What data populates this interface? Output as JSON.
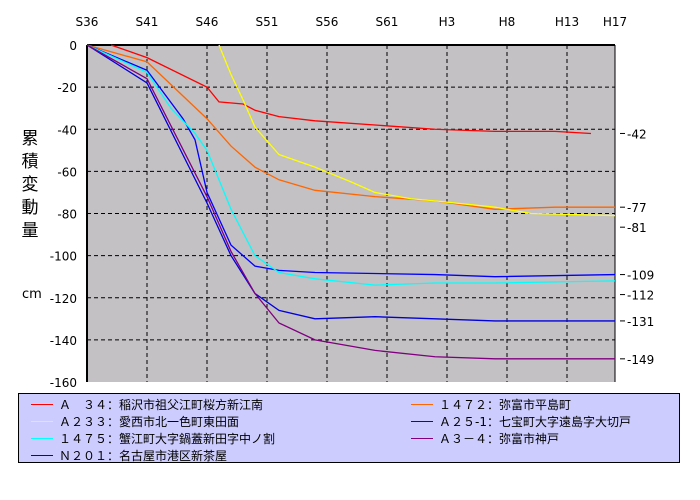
{
  "chart_data": {
    "type": "line",
    "title": "",
    "ylabel": "累積変動量",
    "yunit": "cm",
    "xlabel": "",
    "xlim": [
      1961,
      2005
    ],
    "ylim": [
      -160,
      0
    ],
    "x_ticks": [
      {
        "label": "S36",
        "year": 1961
      },
      {
        "label": "S41",
        "year": 1966
      },
      {
        "label": "S46",
        "year": 1971
      },
      {
        "label": "S51",
        "year": 1976
      },
      {
        "label": "S56",
        "year": 1981
      },
      {
        "label": "S61",
        "year": 1986
      },
      {
        "label": "H3",
        "year": 1991
      },
      {
        "label": "H8",
        "year": 1996
      },
      {
        "label": "H13",
        "year": 2001
      },
      {
        "label": "H17",
        "year": 2005
      }
    ],
    "y_ticks": [
      "0",
      "-20",
      "-40",
      "-60",
      "-80",
      "-100",
      "-120",
      "-140",
      "-160"
    ],
    "grid": true,
    "legend_position": "bottom",
    "series": [
      {
        "name": "Ａ　３４：稲沢市祖父江町桜方新江南",
        "color": "#ff0000",
        "end_label": "-42",
        "points": [
          [
            1963,
            0
          ],
          [
            1966,
            -6
          ],
          [
            1971,
            -20
          ],
          [
            1972,
            -27
          ],
          [
            1974,
            -28
          ],
          [
            1975,
            -31
          ],
          [
            1977,
            -34
          ],
          [
            1980,
            -36
          ],
          [
            1985,
            -38
          ],
          [
            1990,
            -40
          ],
          [
            1995,
            -41
          ],
          [
            2000,
            -41
          ],
          [
            2003,
            -42
          ]
        ]
      },
      {
        "name": "１４７２：弥富市平島町",
        "color": "#ff6600",
        "end_label": "-77",
        "points": [
          [
            1961,
            0
          ],
          [
            1966,
            -8
          ],
          [
            1971,
            -35
          ],
          [
            1973,
            -48
          ],
          [
            1975,
            -58
          ],
          [
            1977,
            -64
          ],
          [
            1980,
            -69
          ],
          [
            1985,
            -72
          ],
          [
            1990,
            -74
          ],
          [
            1995,
            -78
          ],
          [
            2000,
            -77
          ],
          [
            2005,
            -77
          ]
        ]
      },
      {
        "name": "Ａ２３３：愛西市北一色町東田面",
        "color": "#ffff00",
        "end_label": "-81",
        "points": [
          [
            1972,
            0
          ],
          [
            1973,
            -14
          ],
          [
            1974,
            -26
          ],
          [
            1975,
            -39
          ],
          [
            1977,
            -52
          ],
          [
            1980,
            -58
          ],
          [
            1983,
            -65
          ],
          [
            1985,
            -70
          ],
          [
            1988,
            -73
          ],
          [
            1990,
            -74
          ],
          [
            1995,
            -77
          ],
          [
            1998,
            -80
          ],
          [
            2005,
            -81
          ]
        ]
      },
      {
        "name": "Ａ２５-1：七宝町大字遠島字大切戸",
        "color": "#0000ff",
        "end_label": "-109",
        "points": [
          [
            1961,
            0
          ],
          [
            1966,
            -12
          ],
          [
            1969,
            -35
          ],
          [
            1970,
            -45
          ],
          [
            1971,
            -70
          ],
          [
            1973,
            -95
          ],
          [
            1975,
            -105
          ],
          [
            1977,
            -107
          ],
          [
            1980,
            -108
          ],
          [
            1990,
            -109
          ],
          [
            1995,
            -110
          ],
          [
            2005,
            -109
          ]
        ]
      },
      {
        "name": "１４７５：蟹江町大字鍋蓋新田字中ノ割",
        "color": "#00ffff",
        "end_label": "-112",
        "points": [
          [
            1961,
            0
          ],
          [
            1966,
            -13
          ],
          [
            1968,
            -30
          ],
          [
            1970,
            -42
          ],
          [
            1971,
            -50
          ],
          [
            1973,
            -78
          ],
          [
            1975,
            -100
          ],
          [
            1977,
            -108
          ],
          [
            1980,
            -111
          ],
          [
            1985,
            -114
          ],
          [
            1990,
            -113
          ],
          [
            1995,
            -113
          ],
          [
            2005,
            -112
          ]
        ]
      },
      {
        "name": "Ｎ２０１：名古屋市港区新茶屋",
        "color": "#0000dd",
        "end_label": "-131",
        "points": [
          [
            1961,
            0
          ],
          [
            1966,
            -18
          ],
          [
            1971,
            -75
          ],
          [
            1973,
            -100
          ],
          [
            1975,
            -118
          ],
          [
            1977,
            -126
          ],
          [
            1980,
            -130
          ],
          [
            1985,
            -129
          ],
          [
            1990,
            -130
          ],
          [
            1995,
            -131
          ],
          [
            2005,
            -131
          ]
        ]
      },
      {
        "name": "Ａ３－４：弥富市神戸",
        "color": "#800080",
        "end_label": "-149",
        "points": [
          [
            1961,
            0
          ],
          [
            1966,
            -16
          ],
          [
            1971,
            -72
          ],
          [
            1973,
            -98
          ],
          [
            1975,
            -118
          ],
          [
            1977,
            -132
          ],
          [
            1980,
            -140
          ],
          [
            1985,
            -145
          ],
          [
            1990,
            -148
          ],
          [
            1995,
            -149
          ],
          [
            2005,
            -149
          ]
        ]
      }
    ]
  }
}
